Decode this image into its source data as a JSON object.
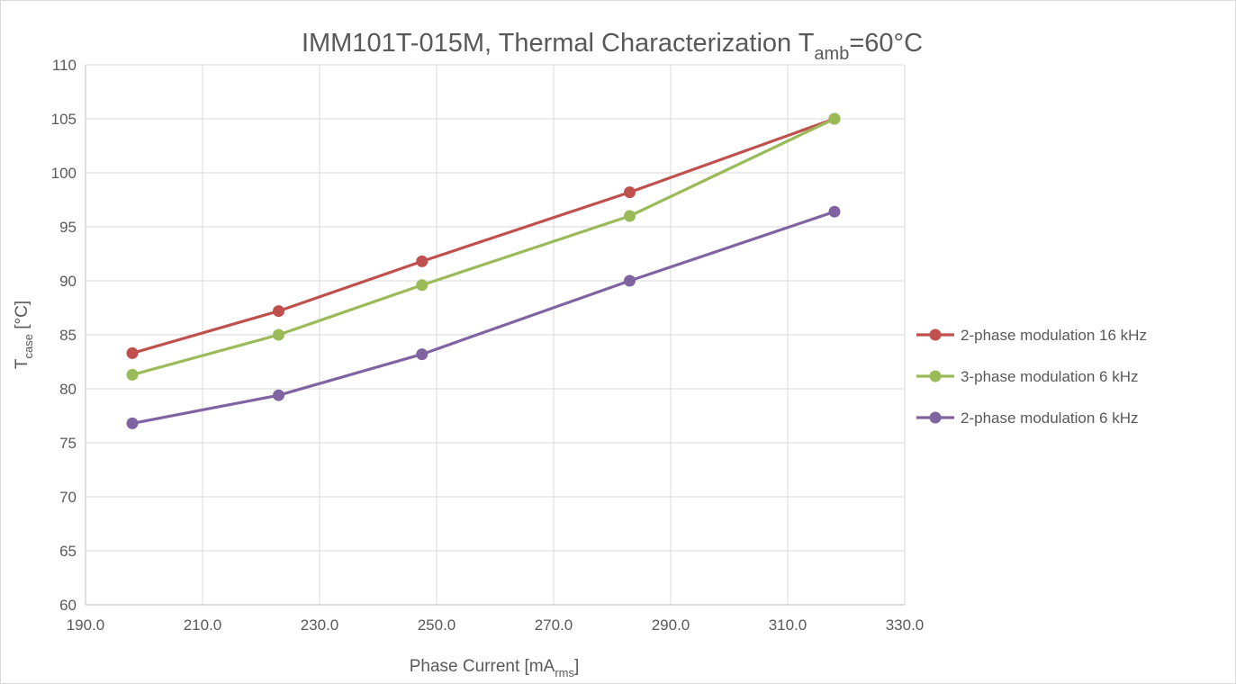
{
  "chart_data": {
    "type": "line",
    "title": "IMM101T-015M, Thermal Characterization T",
    "title_sub": "amb",
    "title_suffix": "=60°C",
    "xlabel": "Phase Current [mA",
    "xlabel_sub": "rms",
    "xlabel_suffix": "]",
    "ylabel": "T",
    "ylabel_sub": "case",
    "ylabel_suffix": " [°C]",
    "xlim": [
      190,
      330
    ],
    "ylim": [
      60,
      110
    ],
    "x_ticks": [
      "190.0",
      "210.0",
      "230.0",
      "250.0",
      "270.0",
      "290.0",
      "310.0",
      "330.0"
    ],
    "y_ticks": [
      "60",
      "65",
      "70",
      "75",
      "80",
      "85",
      "90",
      "95",
      "100",
      "105",
      "110"
    ],
    "x_tick_values": [
      190,
      210,
      230,
      250,
      270,
      290,
      310,
      330
    ],
    "y_tick_values": [
      60,
      65,
      70,
      75,
      80,
      85,
      90,
      95,
      100,
      105,
      110
    ],
    "grid": true,
    "legend_position": "right",
    "series": [
      {
        "name": "2-phase modulation 16 kHz",
        "color": "#c0504d",
        "x": [
          198,
          223,
          247.5,
          283,
          318
        ],
        "y": [
          83.3,
          87.2,
          91.8,
          98.2,
          105
        ]
      },
      {
        "name": "3-phase modulation 6 kHz",
        "color": "#9bbb59",
        "x": [
          198,
          223,
          247.5,
          283,
          318
        ],
        "y": [
          81.3,
          85,
          89.6,
          96,
          105
        ]
      },
      {
        "name": "2-phase modulation 6 kHz",
        "color": "#8064a2",
        "x": [
          198,
          223,
          247.5,
          283,
          318
        ],
        "y": [
          76.8,
          79.4,
          83.2,
          90,
          96.4
        ]
      }
    ]
  }
}
